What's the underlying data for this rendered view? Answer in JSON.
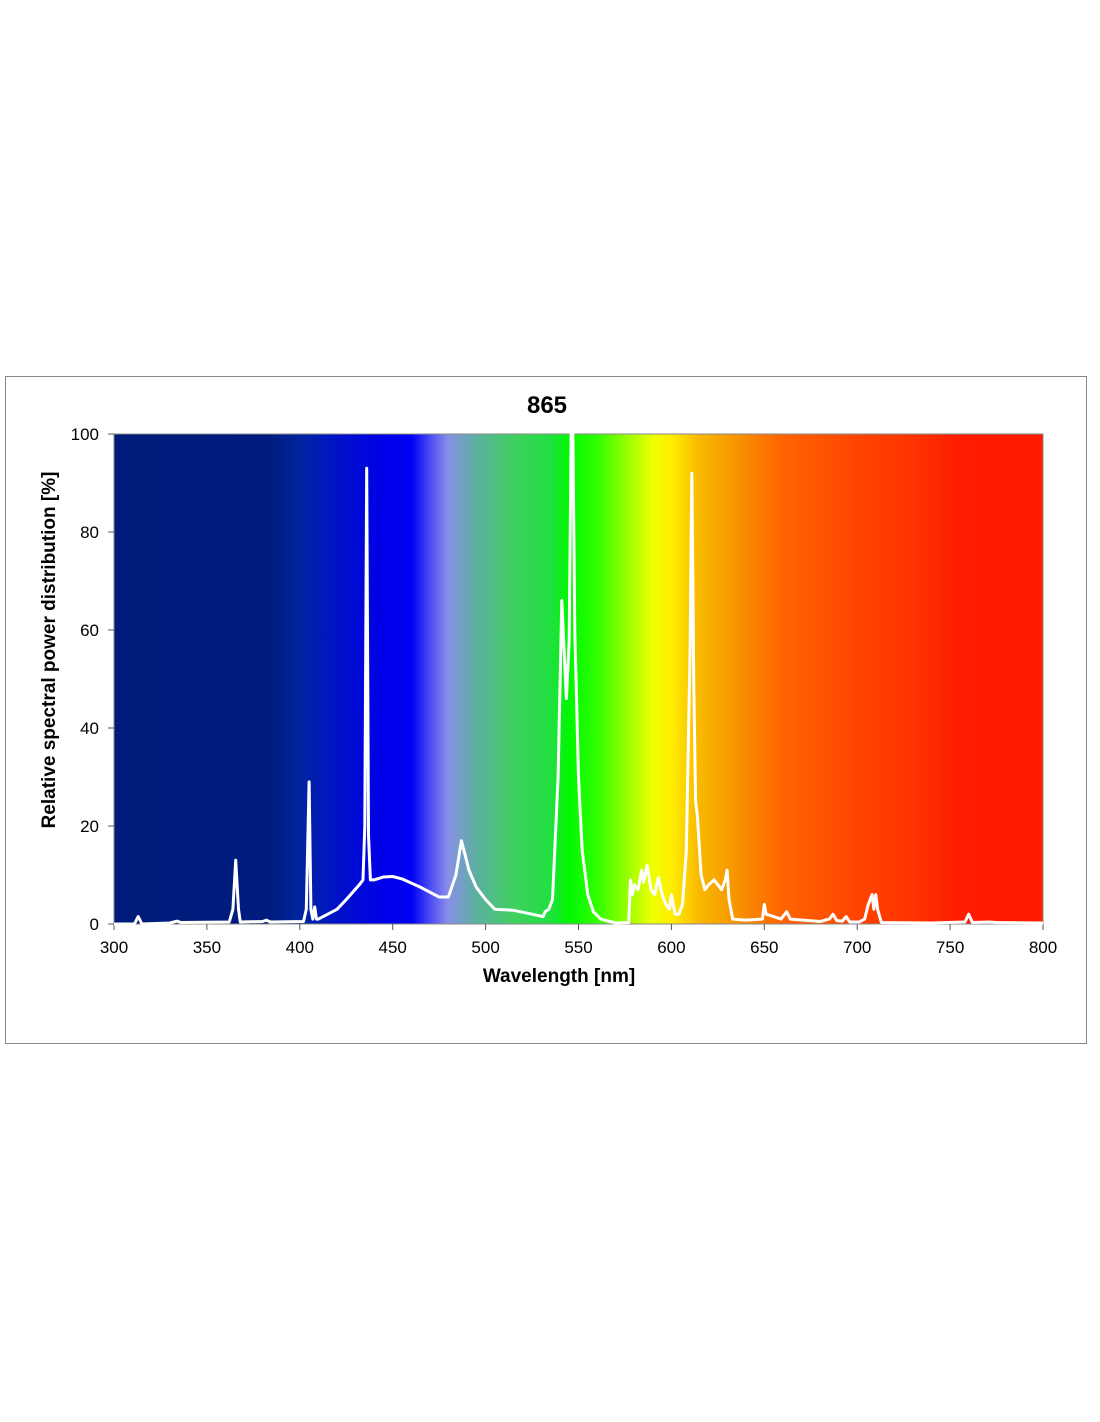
{
  "chart_data": {
    "type": "line",
    "title": "865",
    "xlabel": "Wavelength [nm]",
    "ylabel": "Relative spectral power distribution [%]",
    "xlim": [
      300,
      800
    ],
    "ylim": [
      0,
      100
    ],
    "xticks": [
      300,
      350,
      400,
      450,
      500,
      550,
      600,
      650,
      700,
      750,
      800
    ],
    "yticks": [
      0,
      20,
      40,
      60,
      80,
      100
    ],
    "grid": false,
    "line_color": "#ffffff",
    "background": "visible spectrum gradient",
    "series": [
      {
        "name": "865",
        "points": [
          [
            300,
            0
          ],
          [
            311,
            0
          ],
          [
            313,
            1.5
          ],
          [
            315,
            0
          ],
          [
            330,
            0.2
          ],
          [
            334,
            0.6
          ],
          [
            336,
            0.3
          ],
          [
            362,
            0.4
          ],
          [
            364,
            3
          ],
          [
            365.5,
            13
          ],
          [
            367,
            3
          ],
          [
            368,
            0.4
          ],
          [
            380,
            0.5
          ],
          [
            382,
            0.8
          ],
          [
            384,
            0.4
          ],
          [
            402,
            0.5
          ],
          [
            403.5,
            3
          ],
          [
            405,
            29
          ],
          [
            406,
            3
          ],
          [
            407,
            1
          ],
          [
            408,
            3.5
          ],
          [
            409,
            1
          ],
          [
            410,
            1
          ],
          [
            420,
            3
          ],
          [
            425,
            5
          ],
          [
            432,
            8
          ],
          [
            434,
            9
          ],
          [
            435,
            20
          ],
          [
            436,
            93
          ],
          [
            437,
            18
          ],
          [
            438,
            9
          ],
          [
            440,
            9
          ],
          [
            445,
            9.6
          ],
          [
            450,
            9.7
          ],
          [
            455,
            9.2
          ],
          [
            465,
            7.5
          ],
          [
            475,
            5.5
          ],
          [
            480,
            5.5
          ],
          [
            484,
            10
          ],
          [
            487,
            17
          ],
          [
            489,
            14
          ],
          [
            491,
            11
          ],
          [
            495,
            7.5
          ],
          [
            500,
            5
          ],
          [
            505,
            3
          ],
          [
            515,
            2.8
          ],
          [
            525,
            2
          ],
          [
            531,
            1.5
          ],
          [
            532,
            2.5
          ],
          [
            534,
            3
          ],
          [
            536,
            5
          ],
          [
            539,
            30
          ],
          [
            541,
            66
          ],
          [
            542,
            58
          ],
          [
            543.5,
            46
          ],
          [
            545,
            58
          ],
          [
            546,
            100
          ],
          [
            547,
            100
          ],
          [
            548,
            60
          ],
          [
            550,
            30
          ],
          [
            552,
            15
          ],
          [
            555,
            6
          ],
          [
            558,
            2.5
          ],
          [
            562,
            1
          ],
          [
            570,
            0.2
          ],
          [
            577,
            0.3
          ],
          [
            578,
            9
          ],
          [
            579,
            6
          ],
          [
            580,
            8
          ],
          [
            582,
            7
          ],
          [
            584,
            11
          ],
          [
            585,
            8.5
          ],
          [
            587,
            12
          ],
          [
            589,
            7
          ],
          [
            591,
            6
          ],
          [
            593,
            9.5
          ],
          [
            595,
            6
          ],
          [
            597,
            4
          ],
          [
            599,
            3
          ],
          [
            600,
            6
          ],
          [
            602,
            2
          ],
          [
            604,
            2
          ],
          [
            606,
            4
          ],
          [
            608,
            15
          ],
          [
            610,
            55
          ],
          [
            611,
            92
          ],
          [
            612,
            50
          ],
          [
            613,
            25
          ],
          [
            614,
            22
          ],
          [
            616,
            10
          ],
          [
            618,
            7
          ],
          [
            620,
            8
          ],
          [
            623,
            9
          ],
          [
            625,
            8
          ],
          [
            627,
            7
          ],
          [
            629,
            9
          ],
          [
            630,
            11
          ],
          [
            631,
            5
          ],
          [
            633,
            1
          ],
          [
            640,
            0.8
          ],
          [
            649,
            1
          ],
          [
            650,
            4
          ],
          [
            651,
            2
          ],
          [
            655,
            1.5
          ],
          [
            659,
            1
          ],
          [
            662,
            2.5
          ],
          [
            664,
            1
          ],
          [
            680,
            0.5
          ],
          [
            685,
            1
          ],
          [
            687,
            2
          ],
          [
            689,
            0.7
          ],
          [
            692,
            0.6
          ],
          [
            694,
            1.5
          ],
          [
            696,
            0.4
          ],
          [
            701,
            0.4
          ],
          [
            704,
            1
          ],
          [
            706,
            4
          ],
          [
            708,
            6
          ],
          [
            709,
            3
          ],
          [
            710,
            6
          ],
          [
            711,
            3
          ],
          [
            713,
            0.3
          ],
          [
            740,
            0.2
          ],
          [
            758,
            0.4
          ],
          [
            760,
            2
          ],
          [
            762,
            0.3
          ],
          [
            771,
            0.4
          ],
          [
            775,
            0.3
          ],
          [
            800,
            0.2
          ]
        ]
      }
    ]
  }
}
